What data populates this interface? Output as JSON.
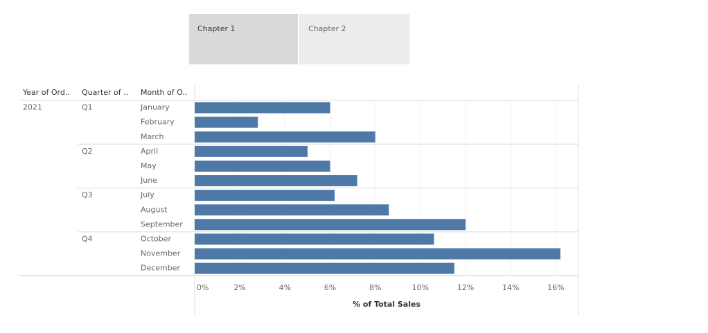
{
  "tabs": [
    "Chapter 1",
    "Chapter 2"
  ],
  "chart_data": {
    "type": "bar",
    "orientation": "horizontal",
    "row_headers": [
      "Year of Ord..",
      "Quarter of ..",
      "Month of O.."
    ],
    "year": "2021",
    "quarters": [
      "Q1",
      "Q2",
      "Q3",
      "Q4"
    ],
    "categories": [
      "January",
      "February",
      "March",
      "April",
      "May",
      "June",
      "July",
      "August",
      "September",
      "October",
      "November",
      "December"
    ],
    "values": [
      6.0,
      2.8,
      8.0,
      5.0,
      6.0,
      7.2,
      6.2,
      8.6,
      12.0,
      10.6,
      16.2,
      11.5
    ],
    "color": "#4e79a7",
    "xlabel": "% of Total Sales",
    "xlim": [
      0,
      17
    ],
    "xticks": [
      {
        "value": 0,
        "label": "0%"
      },
      {
        "value": 2,
        "label": "2%"
      },
      {
        "value": 4,
        "label": "4%"
      },
      {
        "value": 6,
        "label": "6%"
      },
      {
        "value": 8,
        "label": "8%"
      },
      {
        "value": 10,
        "label": "10%"
      },
      {
        "value": 12,
        "label": "12%"
      },
      {
        "value": 14,
        "label": "14%"
      },
      {
        "value": 16,
        "label": "16%"
      }
    ],
    "grid": true
  }
}
